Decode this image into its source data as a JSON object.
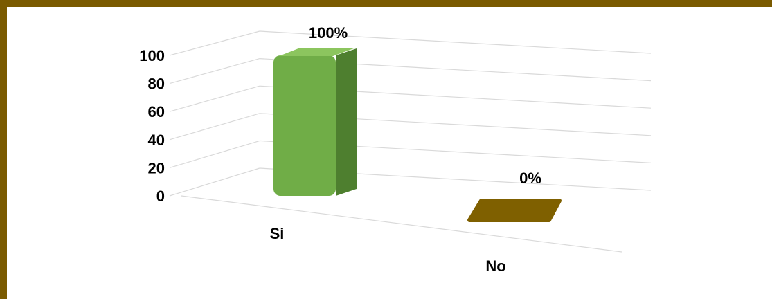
{
  "colors": {
    "frame": "#7a5a00",
    "si_front": "#70ad47",
    "si_side": "#4e7f2f",
    "si_top": "#8cc55e",
    "no_front": "#7f6000",
    "grid": "#d9d9d9"
  },
  "chart_data": {
    "type": "bar",
    "style": "3d-column",
    "categories": [
      "Si",
      "No"
    ],
    "values": [
      100,
      0
    ],
    "data_labels": [
      "100%",
      "0%"
    ],
    "yticks": [
      "0",
      "20",
      "40",
      "60",
      "80",
      "100"
    ],
    "ylim": [
      0,
      100
    ],
    "grid": true,
    "legend": "none",
    "title": "",
    "xlabel": "",
    "ylabel": ""
  }
}
